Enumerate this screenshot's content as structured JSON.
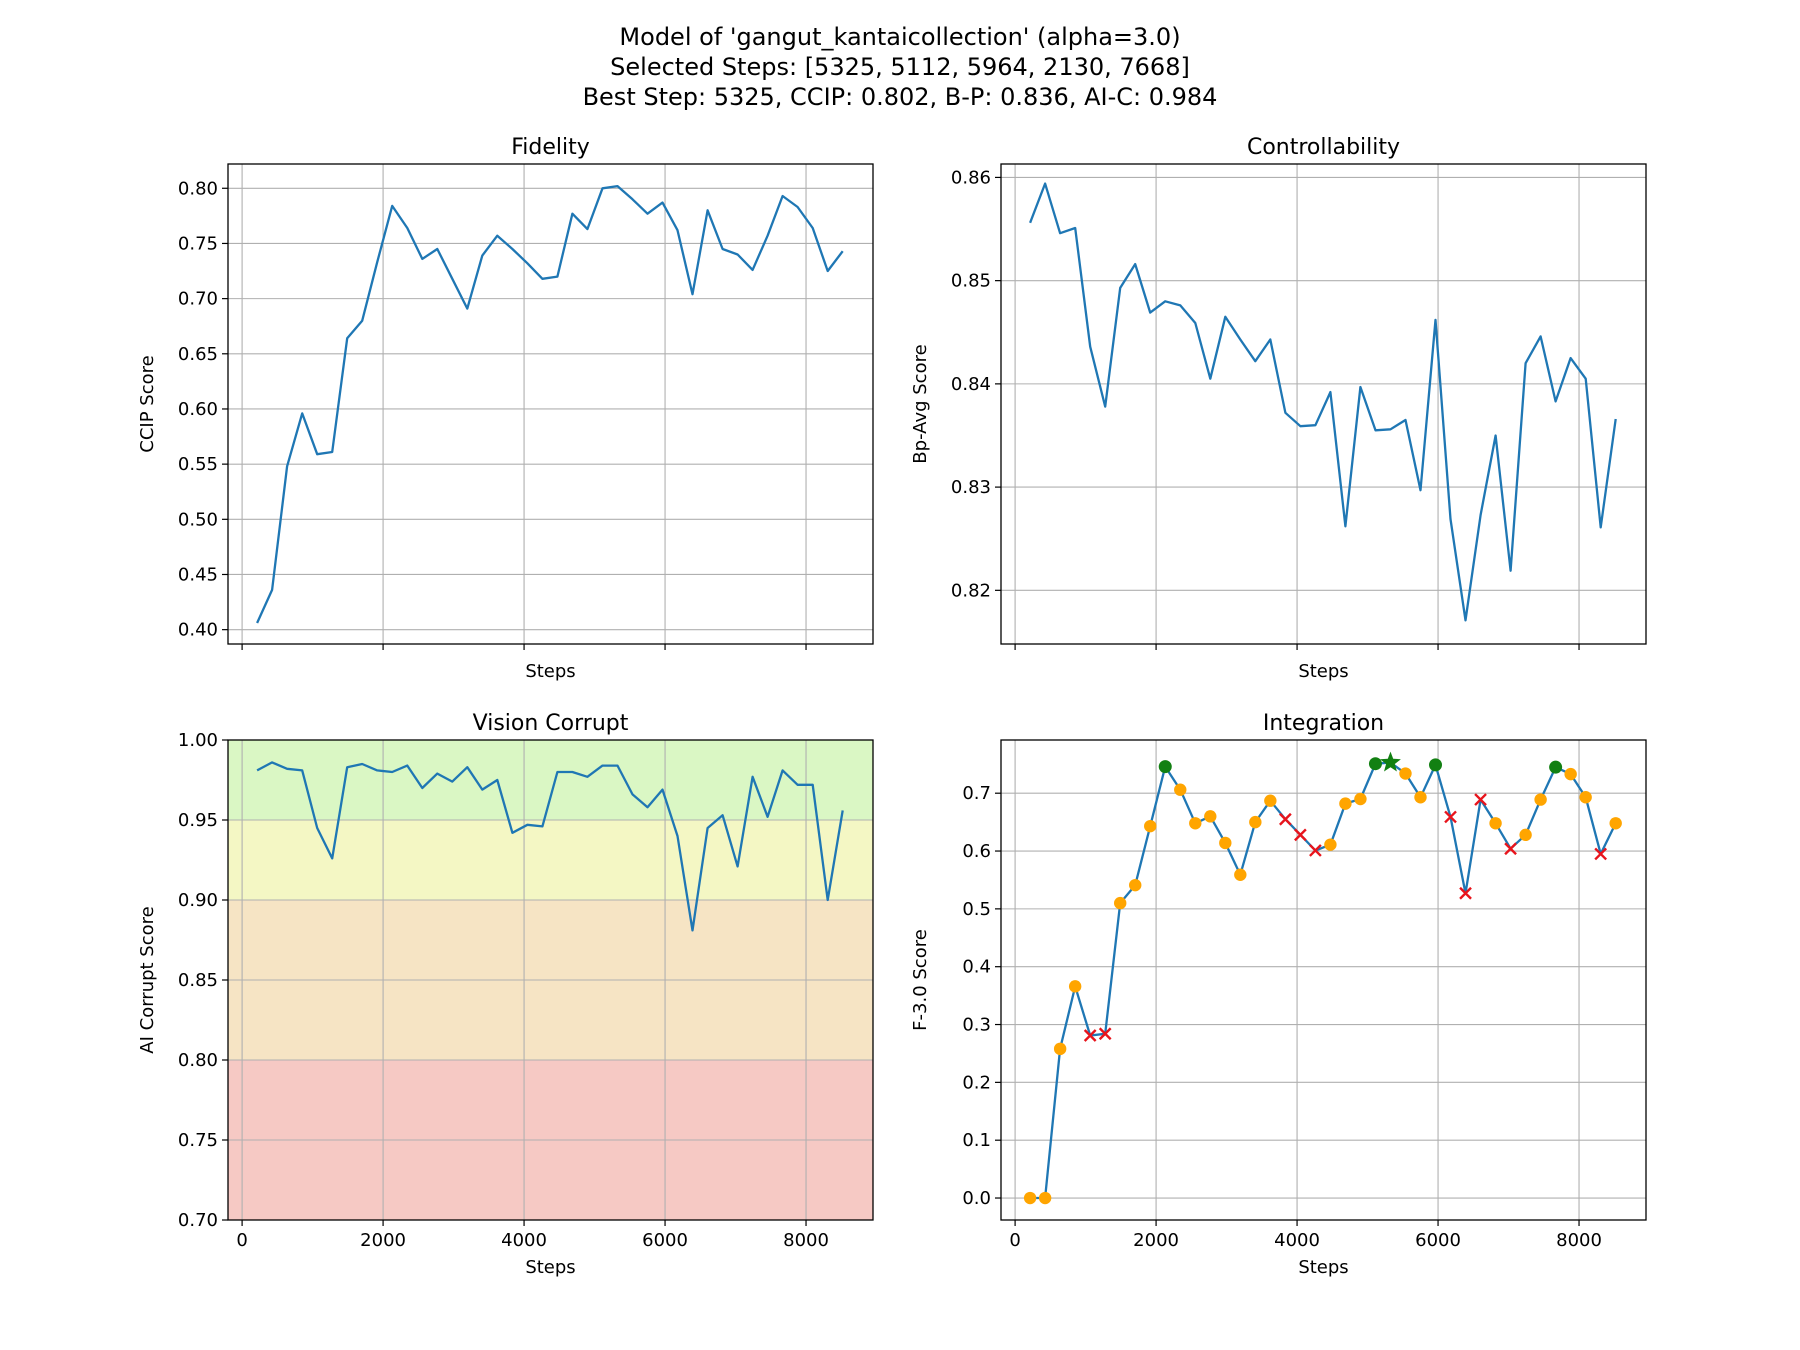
{
  "figure": {
    "title_lines": [
      "Model of 'gangut_kantaicollection' (alpha=3.0)",
      "Selected Steps: [5325, 5112, 5964, 2130, 7668]",
      "Best Step: 5325, CCIP: 0.802, B-P: 0.836, AI-C: 0.984"
    ]
  },
  "chart_data": [
    {
      "type": "line",
      "title": "Fidelity",
      "xlabel": "Steps",
      "ylabel": "CCIP Score",
      "xlim": [
        -200,
        8950
      ],
      "ylim": [
        0.387,
        0.822
      ],
      "xticks": [
        0,
        2000,
        4000,
        6000,
        8000
      ],
      "show_xticklabels": false,
      "yticks": [
        0.4,
        0.45,
        0.5,
        0.55,
        0.6,
        0.65,
        0.7,
        0.75,
        0.8
      ],
      "ytick_labels": [
        "0.40",
        "0.45",
        "0.50",
        "0.55",
        "0.60",
        "0.65",
        "0.70",
        "0.75",
        "0.80"
      ],
      "grid": true,
      "line_color": "#1f77b4",
      "series": [
        {
          "x": [
            213,
            426,
            639,
            852,
            1065,
            1278,
            1491,
            1704,
            1917,
            2130,
            2343,
            2556,
            2769,
            2982,
            3195,
            3408,
            3621,
            3834,
            4047,
            4260,
            4473,
            4686,
            4899,
            5112,
            5325,
            5538,
            5751,
            5964,
            6177,
            6390,
            6603,
            6816,
            7029,
            7242,
            7455,
            7668,
            7881,
            8094,
            8307,
            8520
          ],
          "y": [
            0.406,
            0.436,
            0.548,
            0.596,
            0.559,
            0.561,
            0.664,
            0.68,
            0.733,
            0.784,
            0.764,
            0.736,
            0.745,
            0.718,
            0.691,
            0.739,
            0.757,
            0.745,
            0.732,
            0.718,
            0.72,
            0.777,
            0.763,
            0.8,
            0.802,
            0.79,
            0.777,
            0.787,
            0.762,
            0.704,
            0.78,
            0.745,
            0.74,
            0.726,
            0.757,
            0.793,
            0.783,
            0.764,
            0.725,
            0.743
          ]
        }
      ]
    },
    {
      "type": "line",
      "title": "Controllability",
      "xlabel": "Steps",
      "ylabel": "Bp-Avg Score",
      "xlim": [
        -200,
        8950
      ],
      "ylim": [
        0.8148,
        0.8613
      ],
      "xticks": [
        0,
        2000,
        4000,
        6000,
        8000
      ],
      "show_xticklabels": false,
      "yticks": [
        0.82,
        0.83,
        0.84,
        0.85,
        0.86
      ],
      "ytick_labels": [
        "0.82",
        "0.83",
        "0.84",
        "0.85",
        "0.86"
      ],
      "grid": true,
      "line_color": "#1f77b4",
      "series": [
        {
          "x": [
            213,
            426,
            639,
            852,
            1065,
            1278,
            1491,
            1704,
            1917,
            2130,
            2343,
            2556,
            2769,
            2982,
            3195,
            3408,
            3621,
            3834,
            4047,
            4260,
            4473,
            4686,
            4899,
            5112,
            5325,
            5538,
            5751,
            5964,
            6177,
            6390,
            6603,
            6816,
            7029,
            7242,
            7455,
            7668,
            7881,
            8094,
            8307,
            8520
          ],
          "y": [
            0.8556,
            0.8594,
            0.8546,
            0.8551,
            0.8436,
            0.8378,
            0.8493,
            0.8516,
            0.8469,
            0.848,
            0.8476,
            0.8459,
            0.8405,
            0.8465,
            0.8443,
            0.8422,
            0.8443,
            0.8372,
            0.8359,
            0.836,
            0.8392,
            0.8262,
            0.8397,
            0.8355,
            0.8356,
            0.8365,
            0.8297,
            0.8462,
            0.8269,
            0.8171,
            0.8273,
            0.835,
            0.8219,
            0.842,
            0.8446,
            0.8383,
            0.8425,
            0.8405,
            0.8261,
            0.8366
          ]
        }
      ]
    },
    {
      "type": "line",
      "title": "Vision Corrupt",
      "xlabel": "Steps",
      "ylabel": "AI Corrupt Score",
      "xlim": [
        -200,
        8950
      ],
      "ylim": [
        0.7,
        1.0
      ],
      "xticks": [
        0,
        2000,
        4000,
        6000,
        8000
      ],
      "xtick_labels": [
        "0",
        "2000",
        "4000",
        "6000",
        "8000"
      ],
      "show_xticklabels": true,
      "yticks": [
        0.7,
        0.75,
        0.8,
        0.85,
        0.9,
        0.95,
        1.0
      ],
      "ytick_labels": [
        "0.70",
        "0.75",
        "0.80",
        "0.85",
        "0.90",
        "0.95",
        "1.00"
      ],
      "grid": true,
      "line_color": "#1f77b4",
      "bands": [
        {
          "from": 0.95,
          "to": 1.0,
          "color": "#daf7c4"
        },
        {
          "from": 0.9,
          "to": 0.95,
          "color": "#f4f7c4"
        },
        {
          "from": 0.8,
          "to": 0.9,
          "color": "#f6e4c4"
        },
        {
          "from": 0.7,
          "to": 0.8,
          "color": "#f6c9c4"
        }
      ],
      "series": [
        {
          "x": [
            213,
            426,
            639,
            852,
            1065,
            1278,
            1491,
            1704,
            1917,
            2130,
            2343,
            2556,
            2769,
            2982,
            3195,
            3408,
            3621,
            3834,
            4047,
            4260,
            4473,
            4686,
            4899,
            5112,
            5325,
            5538,
            5751,
            5964,
            6177,
            6390,
            6603,
            6816,
            7029,
            7242,
            7455,
            7668,
            7881,
            8094,
            8307,
            8520
          ],
          "y": [
            0.981,
            0.986,
            0.982,
            0.981,
            0.945,
            0.926,
            0.983,
            0.985,
            0.981,
            0.98,
            0.984,
            0.97,
            0.979,
            0.974,
            0.983,
            0.969,
            0.975,
            0.942,
            0.947,
            0.946,
            0.98,
            0.98,
            0.977,
            0.984,
            0.984,
            0.966,
            0.958,
            0.969,
            0.94,
            0.881,
            0.945,
            0.953,
            0.921,
            0.977,
            0.952,
            0.981,
            0.972,
            0.972,
            0.9,
            0.956
          ]
        }
      ]
    },
    {
      "type": "line",
      "title": "Integration",
      "xlabel": "Steps",
      "ylabel": "F-3.0 Score",
      "xlim": [
        -200,
        8950
      ],
      "ylim": [
        -0.038,
        0.792
      ],
      "xticks": [
        0,
        2000,
        4000,
        6000,
        8000
      ],
      "xtick_labels": [
        "0",
        "2000",
        "4000",
        "6000",
        "8000"
      ],
      "show_xticklabels": true,
      "yticks": [
        0.0,
        0.1,
        0.2,
        0.3,
        0.4,
        0.5,
        0.6,
        0.7
      ],
      "ytick_labels": [
        "0.0",
        "0.1",
        "0.2",
        "0.3",
        "0.4",
        "0.5",
        "0.6",
        "0.7"
      ],
      "grid": true,
      "line_color": "#1f77b4",
      "marker_colors": {
        "normal": "#ffa500",
        "rejected": "#e8141c",
        "selected": "#128012",
        "best": "#128012"
      },
      "series": [
        {
          "x": [
            213,
            426,
            639,
            852,
            1065,
            1278,
            1491,
            1704,
            1917,
            2130,
            2343,
            2556,
            2769,
            2982,
            3195,
            3408,
            3621,
            3834,
            4047,
            4260,
            4473,
            4686,
            4899,
            5112,
            5325,
            5538,
            5751,
            5964,
            6177,
            6390,
            6603,
            6816,
            7029,
            7242,
            7455,
            7668,
            7881,
            8094,
            8307,
            8520
          ],
          "y": [
            0.0,
            0.0,
            0.258,
            0.366,
            0.281,
            0.284,
            0.51,
            0.541,
            0.643,
            0.746,
            0.706,
            0.648,
            0.66,
            0.614,
            0.559,
            0.65,
            0.687,
            0.655,
            0.628,
            0.601,
            0.611,
            0.682,
            0.69,
            0.751,
            0.753,
            0.734,
            0.693,
            0.749,
            0.659,
            0.527,
            0.689,
            0.648,
            0.604,
            0.628,
            0.689,
            0.745,
            0.733,
            0.693,
            0.595,
            0.648
          ],
          "markers": [
            "o",
            "o",
            "o",
            "o",
            "x",
            "x",
            "o",
            "o",
            "o",
            "selected",
            "o",
            "o",
            "o",
            "o",
            "o",
            "o",
            "o",
            "x",
            "x",
            "x",
            "o",
            "o",
            "o",
            "selected",
            "best",
            "o",
            "o",
            "selected",
            "x",
            "x",
            "x",
            "o",
            "x",
            "o",
            "o",
            "selected",
            "o",
            "o",
            "x",
            "o"
          ]
        }
      ]
    }
  ]
}
